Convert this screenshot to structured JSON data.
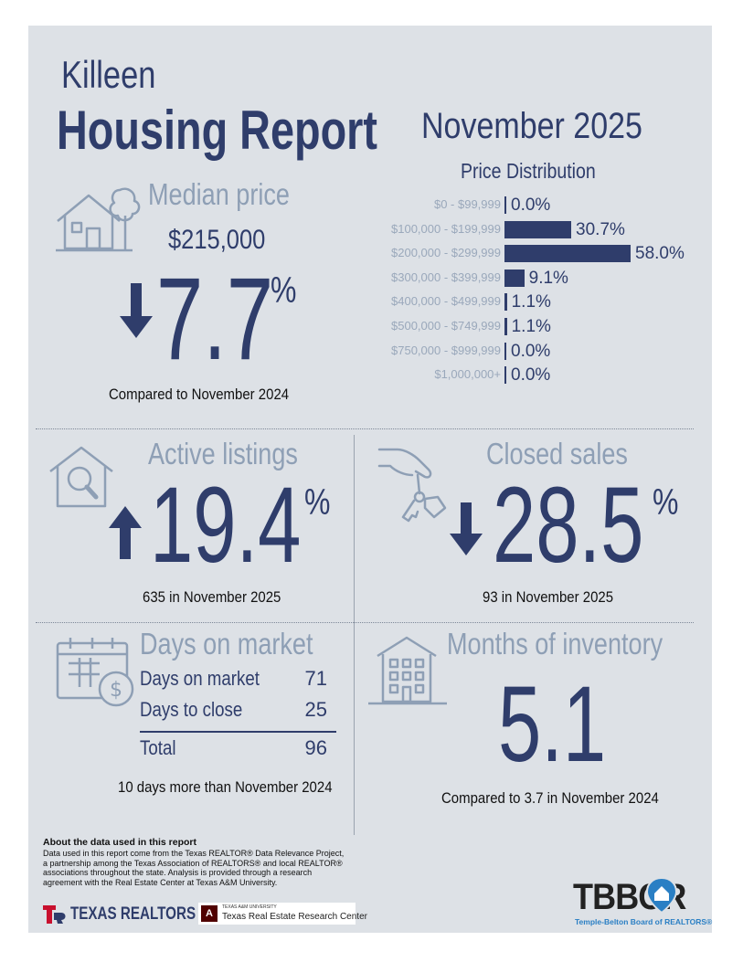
{
  "header": {
    "city": "Killeen",
    "title": "Housing Report",
    "month": "November 2025"
  },
  "median_price": {
    "title": "Median price",
    "value": "$215,000",
    "change": "7.7",
    "percent_sign": "%",
    "direction": "down",
    "caption": "Compared to November 2024",
    "icon": "house-tree-icon"
  },
  "price_distribution": {
    "title": "Price Distribution",
    "rows": [
      {
        "range": "$0 - $99,999",
        "value": 0.0,
        "label": "0.0%"
      },
      {
        "range": "$100,000 - $199,999",
        "value": 30.7,
        "label": "30.7%"
      },
      {
        "range": "$200,000 - $299,999",
        "value": 58.0,
        "label": "58.0%"
      },
      {
        "range": "$300,000 - $399,999",
        "value": 9.1,
        "label": "9.1%"
      },
      {
        "range": "$400,000 - $499,999",
        "value": 1.1,
        "label": "1.1%"
      },
      {
        "range": "$500,000 - $749,999",
        "value": 1.1,
        "label": "1.1%"
      },
      {
        "range": "$750,000 - $999,999",
        "value": 0.0,
        "label": "0.0%"
      },
      {
        "range": "$1,000,000+",
        "value": 0.0,
        "label": "0.0%"
      }
    ]
  },
  "active_listings": {
    "title": "Active listings",
    "change": "19.4",
    "percent_sign": "%",
    "direction": "up",
    "caption": "635 in November 2025",
    "icon": "house-search-icon"
  },
  "closed_sales": {
    "title": "Closed sales",
    "change": "28.5",
    "percent_sign": "%",
    "direction": "down",
    "caption": "93 in November 2025",
    "icon": "hand-keys-icon"
  },
  "days_on_market": {
    "title": "Days on market",
    "rows": [
      {
        "label": "Days on market",
        "value": "71"
      },
      {
        "label": "Days to close",
        "value": "25"
      }
    ],
    "total_label": "Total",
    "total_value": "96",
    "caption": "10 days more than November 2024",
    "icon": "calendar-dollar-icon"
  },
  "months_inventory": {
    "title": "Months of inventory",
    "value": "5.1",
    "caption": "Compared to 3.7 in November 2024",
    "icon": "apartment-building-icon"
  },
  "about": {
    "heading": "About the data used in this report",
    "text": "Data used in this report come from the Texas REALTOR® Data Relevance Project, a partnership among the Texas Association of REALTORS® and local REALTOR® associations throughout the state. Analysis is provided through a research agreement with the Real Estate Center at Texas A&M University."
  },
  "logos": {
    "texas_realtors": "TEXAS REALTORS",
    "tamu_small": "TEXAS A&M UNIVERSITY",
    "tamu_center": "Texas Real Estate Research Center",
    "tbbor": "TBBOR",
    "tbbor_sub": "Temple-Belton Board of REALTORS®"
  },
  "colors": {
    "navy": "#2f3d6b",
    "grey_blue": "#8e9fb5",
    "panel": "#dde1e6",
    "tr_red": "#c8102e",
    "tamu_maroon": "#500000",
    "tbbor_blue": "#2a7fc4"
  }
}
